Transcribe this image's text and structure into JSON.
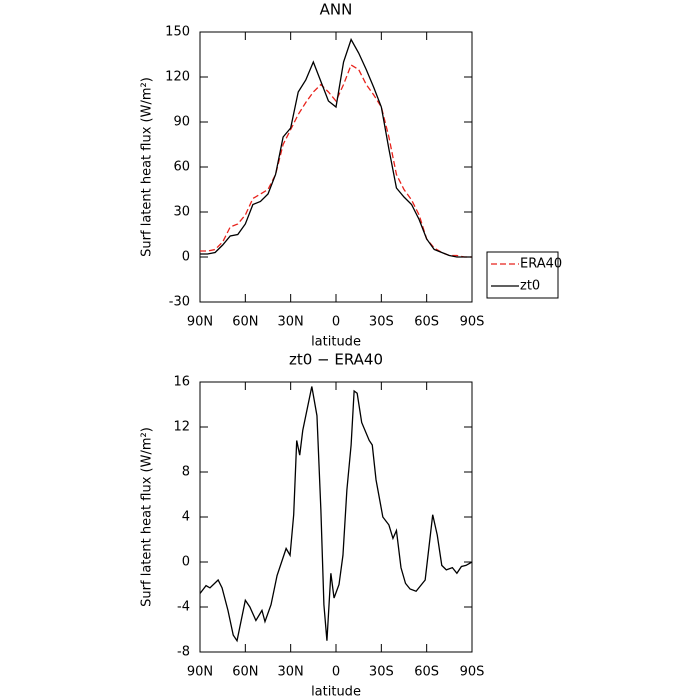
{
  "chart_data": [
    {
      "type": "line",
      "title": "ANN",
      "xlabel": "latitude",
      "ylabel": "Surf latent heat flux (W/m²)",
      "x": [
        90,
        85,
        80,
        75,
        70,
        65,
        60,
        55,
        50,
        45,
        40,
        35,
        30,
        25,
        20,
        15,
        10,
        5,
        0,
        -5,
        -10,
        -15,
        -20,
        -25,
        -30,
        -35,
        -40,
        -45,
        -50,
        -55,
        -60,
        -65,
        -70,
        -75,
        -80,
        -85,
        -90
      ],
      "series": [
        {
          "name": "ERA40",
          "color": "#e8231c",
          "line_style": "dashed",
          "values": [
            4,
            4,
            5,
            10,
            20,
            22,
            28,
            39,
            42,
            45,
            55,
            75,
            85,
            95,
            103,
            110,
            115,
            110,
            104,
            115,
            128,
            125,
            115,
            108,
            100,
            80,
            55,
            45,
            38,
            28,
            12,
            6,
            3,
            1,
            1,
            0,
            0
          ]
        },
        {
          "name": "zt0",
          "color": "#000000",
          "line_style": "solid",
          "values": [
            2,
            2,
            3,
            8,
            14,
            15,
            22,
            35,
            37,
            42,
            55,
            80,
            86,
            110,
            118,
            130,
            117,
            104,
            100,
            130,
            145,
            136,
            125,
            113,
            100,
            72,
            46,
            40,
            35,
            25,
            12,
            5,
            3,
            1,
            0,
            0,
            0
          ]
        }
      ],
      "xlim": [
        90,
        -90
      ],
      "xticks": [
        {
          "value": 90,
          "label": "90N"
        },
        {
          "value": 60,
          "label": "60N"
        },
        {
          "value": 30,
          "label": "30N"
        },
        0,
        {
          "value": -30,
          "label": "30S"
        },
        {
          "value": -60,
          "label": "60S"
        },
        {
          "value": -90,
          "label": "90S"
        }
      ],
      "ylim": [
        -30,
        150
      ],
      "yticks": [
        -30,
        0,
        30,
        60,
        90,
        120,
        150
      ],
      "legend": "right"
    },
    {
      "type": "line",
      "title": "zt0 − ERA40",
      "xlabel": "latitude",
      "ylabel": "Surf latent heat flux (W/m²)",
      "x": [
        90,
        86,
        83.4,
        78,
        75.4,
        71.5,
        68,
        65.5,
        60,
        57,
        53,
        49,
        47,
        43,
        39,
        33,
        30.4,
        28,
        26,
        24,
        22,
        16,
        12.6,
        10,
        8,
        6,
        3.4,
        1.3,
        -2,
        -4.6,
        -7.2,
        -10,
        -12,
        -14,
        -17,
        -22,
        -24,
        -26.5,
        -31,
        -35,
        -37.7,
        -40,
        -43,
        -46,
        -49,
        -53,
        -59,
        -64,
        -67,
        -70,
        -73,
        -77,
        -80,
        -83,
        -86,
        -90
      ],
      "color": "#000000",
      "values": [
        -2.8,
        -2.1,
        -2.3,
        -1.6,
        -2.3,
        -4.3,
        -6.5,
        -7,
        -3.4,
        -4,
        -5.2,
        -4.3,
        -5.3,
        -3.8,
        -1.2,
        1.2,
        0.6,
        4.2,
        10.8,
        9.5,
        11.7,
        15.6,
        13,
        4.6,
        -3.8,
        -7,
        -1,
        -3.2,
        -2,
        0.6,
        6.4,
        10.4,
        15.2,
        15,
        12.4,
        10.8,
        10.4,
        7.3,
        4,
        3.3,
        2.1,
        2.8,
        -0.5,
        -1.9,
        -2.4,
        -2.6,
        -1.6,
        4.2,
        2.4,
        -0.3,
        -0.7,
        -0.5,
        -1,
        -0.4,
        -0.3,
        0
      ],
      "xlim": [
        90,
        -90
      ],
      "xticks": [
        {
          "value": 90,
          "label": "90N"
        },
        {
          "value": 60,
          "label": "60N"
        },
        {
          "value": 30,
          "label": "30N"
        },
        0,
        {
          "value": -30,
          "label": "30S"
        },
        {
          "value": -60,
          "label": "60S"
        },
        {
          "value": -90,
          "label": "90S"
        }
      ],
      "ylim": [
        -8,
        16
      ],
      "yticks": [
        -8,
        -4,
        0,
        4,
        8,
        12,
        16
      ]
    }
  ]
}
